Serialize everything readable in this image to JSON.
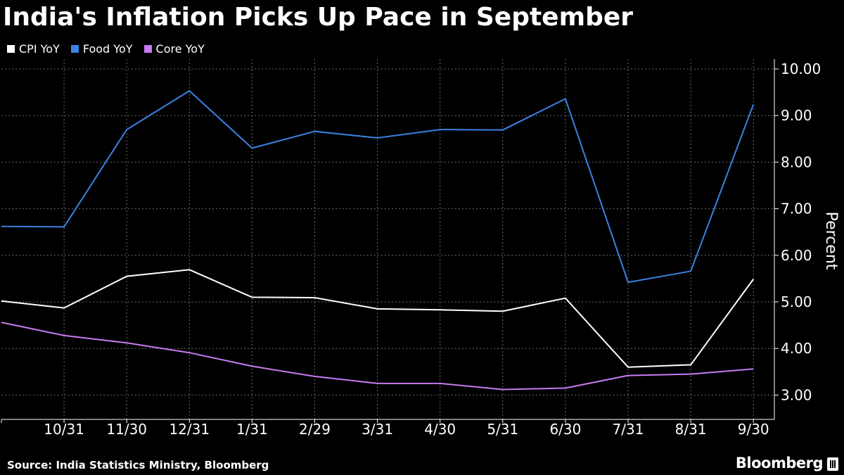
{
  "chart_data": {
    "type": "line",
    "title": "India's Inflation Picks Up Pace in September",
    "ylabel": "Percent",
    "xlabel": "",
    "ylim": [
      2.5,
      10.2
    ],
    "grid": true,
    "legend": "top-left",
    "x_tick_labels": [
      "10/31",
      "11/30",
      "12/31",
      "1/31",
      "2/29",
      "3/31",
      "4/30",
      "5/31",
      "6/30",
      "7/31",
      "8/31",
      "9/30"
    ],
    "y_ticks": [
      3,
      4,
      5,
      6,
      7,
      8,
      9,
      10
    ],
    "y_tick_labels": [
      "3.00",
      "4.00",
      "5.00",
      "6.00",
      "7.00",
      "8.00",
      "9.00",
      "10.00"
    ],
    "x": [
      "9/30",
      "10/31",
      "11/30",
      "12/31",
      "1/31",
      "2/29",
      "3/31",
      "4/30",
      "5/31",
      "6/30",
      "7/31",
      "8/31",
      "9/30"
    ],
    "series": [
      {
        "name": "CPI YoY",
        "color": "#ffffff",
        "values": [
          5.02,
          4.87,
          5.55,
          5.69,
          5.1,
          5.09,
          4.85,
          4.83,
          4.8,
          5.08,
          3.6,
          3.65,
          5.49
        ]
      },
      {
        "name": "Food YoY",
        "color": "#3b82e0",
        "values": [
          6.62,
          6.61,
          8.7,
          9.53,
          8.3,
          8.66,
          8.52,
          8.7,
          8.69,
          9.36,
          5.42,
          5.66,
          9.24
        ]
      },
      {
        "name": "Core YoY",
        "color": "#c77bf0",
        "values": [
          4.56,
          4.28,
          4.12,
          3.91,
          3.62,
          3.4,
          3.25,
          3.25,
          3.12,
          3.15,
          3.42,
          3.45,
          3.56
        ]
      }
    ]
  },
  "source": "Source: India Statistics Ministry, Bloomberg",
  "brand": "Bloomberg"
}
